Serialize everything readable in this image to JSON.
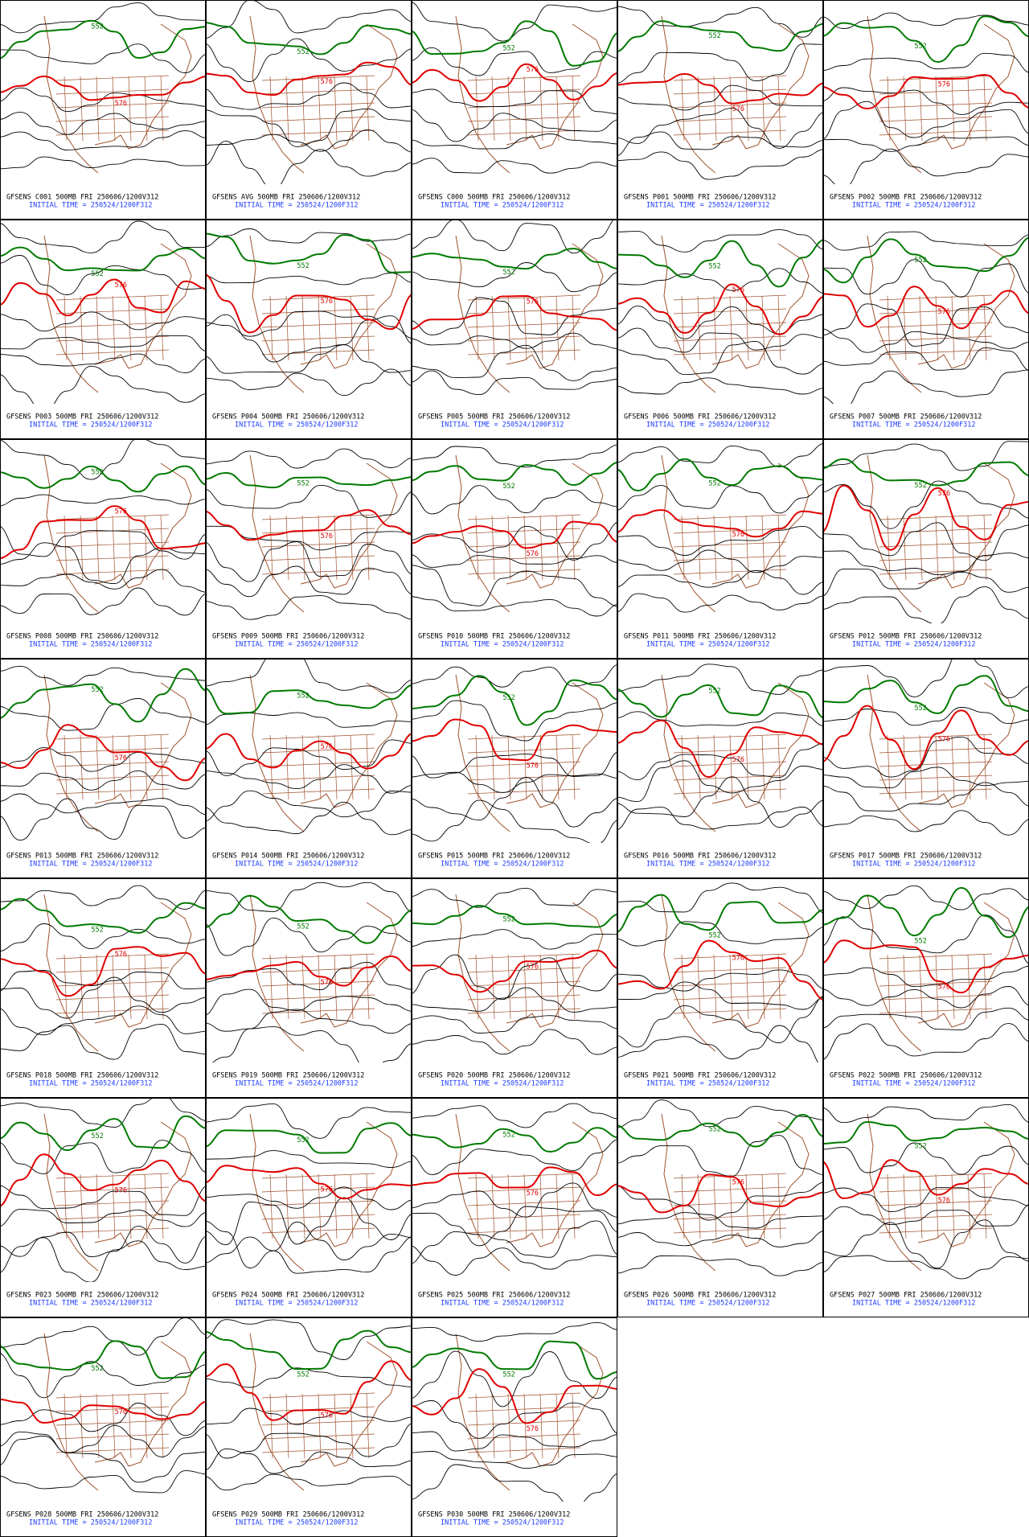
{
  "contour_labels": {
    "green": "552",
    "red": "576"
  },
  "panels": [
    {
      "label": "GFSENS C001 500MB FRI 250606/1200V312",
      "init": "INITIAL TIME = 250524/1200F312"
    },
    {
      "label": "GFSENS AVG 500MB FRI 250606/1200V312",
      "init": "INITIAL TIME = 250524/1200F312"
    },
    {
      "label": "GFSENS C000 500MB FRI 250606/1200V312",
      "init": "INITIAL TIME = 250524/1200F312"
    },
    {
      "label": "GFSENS P001 500MB FRI 250606/1200V312",
      "init": "INITIAL TIME = 250524/1200F312"
    },
    {
      "label": "GFSENS P002 500MB FRI 250606/1200V312",
      "init": "INITIAL TIME = 250524/1200F312"
    },
    {
      "label": "GFSENS P003 500MB FRI 250606/1200V312",
      "init": "INITIAL TIME = 250524/1200F312"
    },
    {
      "label": "GFSENS P004 500MB FRI 250606/1200V312",
      "init": "INITIAL TIME = 250524/1200F312"
    },
    {
      "label": "GFSENS P005 500MB FRI 250606/1200V312",
      "init": "INITIAL TIME = 250524/1200F312"
    },
    {
      "label": "GFSENS P006 500MB FRI 250606/1200V312",
      "init": "INITIAL TIME = 250524/1200F312"
    },
    {
      "label": "GFSENS P007 500MB FRI 250606/1200V312",
      "init": "INITIAL TIME = 250524/1200F312"
    },
    {
      "label": "GFSENS P008 500MB FRI 250606/1200V312",
      "init": "INITIAL TIME = 250524/1200F312"
    },
    {
      "label": "GFSENS P009 500MB FRI 250606/1200V312",
      "init": "INITIAL TIME = 250524/1200F312"
    },
    {
      "label": "GFSENS P010 500MB FRI 250606/1200V312",
      "init": "INITIAL TIME = 250524/1200F312"
    },
    {
      "label": "GFSENS P011 500MB FRI 250606/1200V312",
      "init": "INITIAL TIME = 250524/1200F312"
    },
    {
      "label": "GFSENS P012 500MB FRI 250606/1200V312",
      "init": "INITIAL TIME = 250524/1200F312"
    },
    {
      "label": "GFSENS P013 500MB FRI 250606/1200V312",
      "init": "INITIAL TIME = 250524/1200F312"
    },
    {
      "label": "GFSENS P014 500MB FRI 250606/1200V312",
      "init": "INITIAL TIME = 250524/1200F312"
    },
    {
      "label": "GFSENS P015 500MB FRI 250606/1200V312",
      "init": "INITIAL TIME = 250524/1200F312"
    },
    {
      "label": "GFSENS P016 500MB FRI 250606/1200V312",
      "init": "INITIAL TIME = 250524/1200F312"
    },
    {
      "label": "GFSENS P017 500MB FRI 250606/1200V312",
      "init": "INITIAL TIME = 250524/1200F312"
    },
    {
      "label": "GFSENS P018 500MB FRI 250606/1200V312",
      "init": "INITIAL TIME = 250524/1200F312"
    },
    {
      "label": "GFSENS P019 500MB FRI 250606/1200V312",
      "init": "INITIAL TIME = 250524/1200F312"
    },
    {
      "label": "GFSENS P020 500MB FRI 250606/1200V312",
      "init": "INITIAL TIME = 250524/1200F312"
    },
    {
      "label": "GFSENS P021 500MB FRI 250606/1200V312",
      "init": "INITIAL TIME = 250524/1200F312"
    },
    {
      "label": "GFSENS P022 500MB FRI 250606/1200V312",
      "init": "INITIAL TIME = 250524/1200F312"
    },
    {
      "label": "GFSENS P023 500MB FRI 250606/1200V312",
      "init": "INITIAL TIME = 250524/1200F312"
    },
    {
      "label": "GFSENS P024 500MB FRI 250606/1200V312",
      "init": "INITIAL TIME = 250524/1200F312"
    },
    {
      "label": "GFSENS P025 500MB FRI 250606/1200V312",
      "init": "INITIAL TIME = 250524/1200F312"
    },
    {
      "label": "GFSENS P026 500MB FRI 250606/1200V312",
      "init": "INITIAL TIME = 250524/1200F312"
    },
    {
      "label": "GFSENS P027 500MB FRI 250606/1200V312",
      "init": "INITIAL TIME = 250524/1200F312"
    },
    {
      "label": "GFSENS P028 500MB FRI 250606/1200V312",
      "init": "INITIAL TIME = 250524/1200F312"
    },
    {
      "label": "GFSENS P029 500MB FRI 250606/1200V312",
      "init": "INITIAL TIME = 250524/1200F312"
    },
    {
      "label": "GFSENS P030 500MB FRI 250606/1200V312",
      "init": "INITIAL TIME = 250524/1200F312"
    }
  ]
}
